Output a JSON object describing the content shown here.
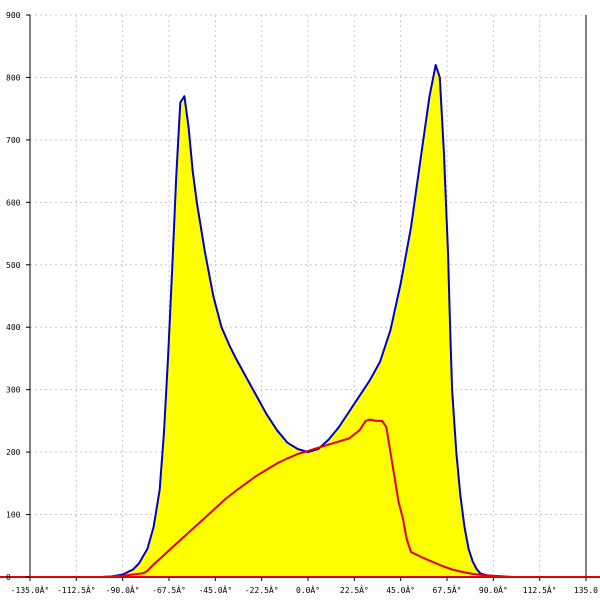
{
  "chart_data": {
    "type": "area",
    "xlim": [
      -135,
      135
    ],
    "ylim": [
      0,
      900
    ],
    "x_ticks": [
      -135,
      -112.5,
      -90,
      -67.5,
      -45,
      -22.5,
      0,
      22.5,
      45,
      67.5,
      90,
      112.5,
      135
    ],
    "x_tick_labels": [
      "-135.0Â°",
      "-112.5Â°",
      "-90.0Â°",
      "-67.5Â°",
      "-45.0Â°",
      "-22.5Â°",
      "0.0Â°",
      "22.5Â°",
      "45.0Â°",
      "67.5Â°",
      "90.0Â°",
      "112.5Â°",
      "135.0"
    ],
    "y_ticks": [
      0,
      100,
      200,
      300,
      400,
      500,
      600,
      700,
      800,
      900
    ],
    "y_tick_labels": [
      "0",
      "100",
      "200",
      "300",
      "400",
      "500",
      "600",
      "700",
      "800",
      "900"
    ],
    "grid": true,
    "series": [
      {
        "style": "filled-area",
        "line_color": "#0000cc",
        "fill_color": "#ffff00",
        "x": [
          -100,
          -95,
          -90,
          -85,
          -82,
          -78,
          -75,
          -72,
          -70,
          -68,
          -66,
          -64,
          -62,
          -60,
          -58,
          -56,
          -54,
          -50,
          -46,
          -42,
          -38,
          -35,
          -30,
          -25,
          -20,
          -15,
          -10,
          -5,
          0,
          5,
          10,
          15,
          20,
          25,
          30,
          35,
          40,
          45,
          50,
          53,
          56,
          59,
          62,
          64,
          66,
          68,
          69,
          70,
          72,
          74,
          76,
          78,
          80,
          82,
          84,
          88,
          92,
          96,
          100
        ],
        "y": [
          0,
          1,
          4,
          12,
          22,
          45,
          80,
          140,
          230,
          350,
          490,
          640,
          760,
          770,
          720,
          650,
          600,
          520,
          450,
          400,
          370,
          350,
          320,
          290,
          260,
          235,
          215,
          205,
          200,
          205,
          220,
          240,
          265,
          290,
          315,
          345,
          395,
          470,
          560,
          630,
          700,
          770,
          820,
          800,
          680,
          520,
          400,
          300,
          200,
          130,
          80,
          45,
          25,
          12,
          5,
          2,
          1,
          0,
          0
        ]
      },
      {
        "style": "line",
        "line_color": "#e00000",
        "x": [
          -100,
          -90,
          -80,
          -78,
          -75,
          -70,
          -65,
          -60,
          -55,
          -50,
          -45,
          -40,
          -35,
          -30,
          -25,
          -20,
          -15,
          -10,
          -5,
          0,
          5,
          10,
          15,
          20,
          25,
          28,
          30,
          33,
          36,
          38,
          40,
          42,
          44,
          46,
          48,
          50,
          55,
          60,
          65,
          70,
          75,
          80,
          85,
          90,
          95,
          100
        ],
        "y": [
          0,
          2,
          6,
          10,
          20,
          35,
          50,
          65,
          80,
          95,
          110,
          125,
          138,
          150,
          162,
          172,
          182,
          190,
          197,
          202,
          207,
          212,
          217,
          222,
          235,
          250,
          252,
          250,
          250,
          240,
          200,
          160,
          120,
          95,
          60,
          40,
          32,
          25,
          18,
          12,
          8,
          5,
          3,
          2,
          1,
          0
        ]
      }
    ]
  }
}
